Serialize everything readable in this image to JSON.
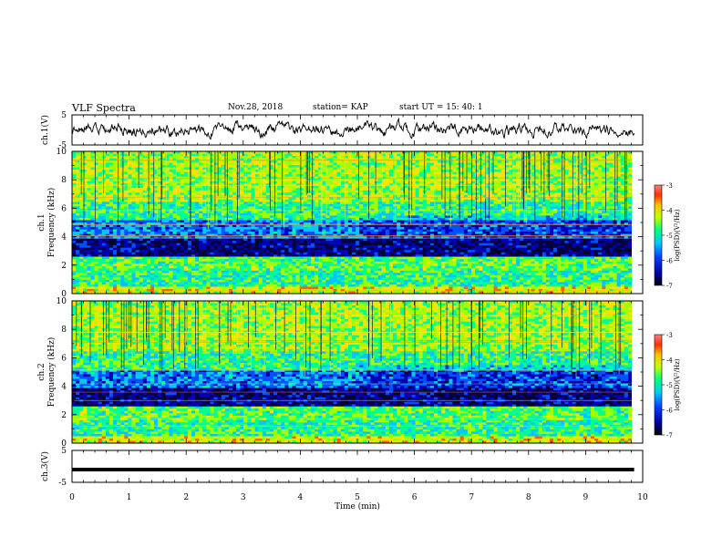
{
  "header": {
    "title": "VLF Spectra",
    "date": "Nov.28, 2018",
    "station": "station= KAP",
    "start": "start  UT =   15: 40: 1"
  },
  "chart_data": [
    {
      "type": "line",
      "name": "waveform-ch1",
      "ylabel": "ch.1(V)",
      "ylim": [
        -5,
        5
      ],
      "yticks": [
        "5",
        "-5"
      ],
      "xlim": [
        0,
        10
      ],
      "description_free": true,
      "trace_extent_min": 9.85
    },
    {
      "type": "heatmap",
      "name": "spectrogram-ch1",
      "ylabel": "ch.1\nFrequency (kHz)",
      "ylim": [
        0,
        10
      ],
      "yticks": [
        "0",
        "2",
        "4",
        "6",
        "8",
        "10"
      ],
      "xlim": [
        0,
        10
      ],
      "colorbar": {
        "label": "log(PSD)(V²/Hz)",
        "range": [
          -7,
          -3
        ],
        "ticks": [
          "-3",
          "-4",
          "-5",
          "-6",
          "-7"
        ]
      }
    },
    {
      "type": "heatmap",
      "name": "spectrogram-ch2",
      "ylabel": "ch.2\nFrequency (kHz)",
      "ylim": [
        0,
        10
      ],
      "yticks": [
        "0",
        "2",
        "4",
        "6",
        "8",
        "10"
      ],
      "xlim": [
        0,
        10
      ],
      "colorbar": {
        "label": "log(PSD)(V²/Hz)",
        "range": [
          -7,
          -3
        ],
        "ticks": [
          "-3",
          "-4",
          "-5",
          "-6",
          "-7"
        ]
      }
    },
    {
      "type": "line",
      "name": "waveform-ch3",
      "ylabel": "ch.3(V)",
      "ylim": [
        -5,
        5
      ],
      "yticks": [
        "5",
        "-5"
      ],
      "xlim": [
        0,
        10
      ],
      "constant_value": -1.0,
      "trace_extent_min": 9.85
    }
  ],
  "xaxis": {
    "label": "Time (min)",
    "ticks": [
      "0",
      "1",
      "2",
      "3",
      "4",
      "5",
      "6",
      "7",
      "8",
      "9",
      "10"
    ]
  },
  "colors": {
    "trace": "#000000",
    "cmap": [
      "#00003a",
      "#0000b4",
      "#0050ff",
      "#00c8ff",
      "#00ff90",
      "#a0ff00",
      "#ffe000",
      "#ff6000",
      "#d00000"
    ]
  }
}
